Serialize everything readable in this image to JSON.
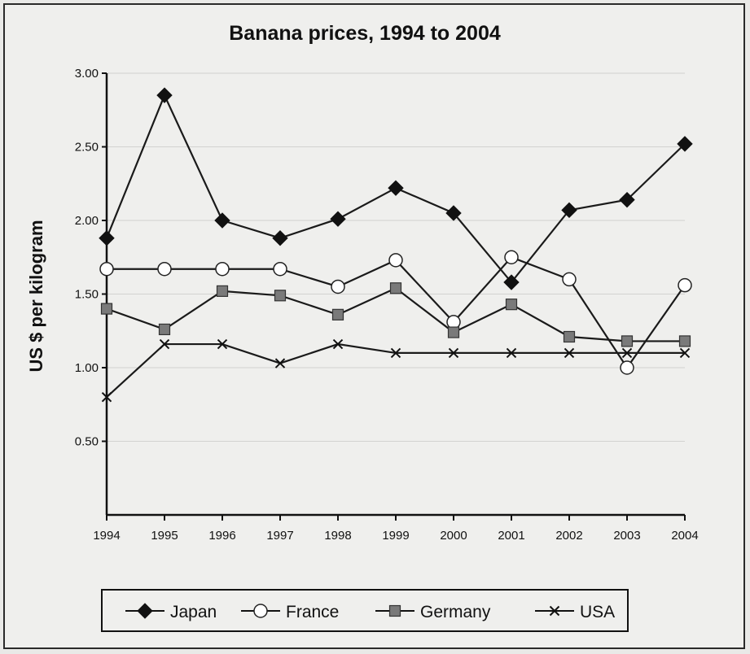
{
  "chart_data": {
    "type": "line",
    "title": "Banana prices, 1994 to 2004",
    "xlabel": "",
    "ylabel": "US $ per kilogram",
    "x": [
      "1994",
      "1995",
      "1996",
      "1997",
      "1998",
      "1999",
      "2000",
      "2001",
      "2002",
      "2003",
      "2004"
    ],
    "ylim": [
      0,
      3
    ],
    "yticks": [
      "0.50",
      "1.00",
      "1.50",
      "2.00",
      "2.50",
      "3.00"
    ],
    "grid": true,
    "legend_position": "bottom",
    "series": [
      {
        "name": "Japan",
        "marker": "diamond",
        "color": "#111111",
        "values": [
          1.88,
          2.85,
          2.0,
          1.88,
          2.01,
          2.22,
          2.05,
          1.58,
          2.07,
          2.14,
          2.52
        ]
      },
      {
        "name": "France",
        "marker": "circle",
        "color": "#ffffff",
        "values": [
          1.67,
          1.67,
          1.67,
          1.67,
          1.55,
          1.73,
          1.31,
          1.75,
          1.6,
          1.0,
          1.56
        ]
      },
      {
        "name": "Germany",
        "marker": "square",
        "color": "#7a7a7a",
        "values": [
          1.4,
          1.26,
          1.52,
          1.49,
          1.36,
          1.54,
          1.24,
          1.43,
          1.21,
          1.18,
          1.18
        ]
      },
      {
        "name": "USA",
        "marker": "x",
        "color": "#111111",
        "values": [
          0.8,
          1.16,
          1.16,
          1.03,
          1.16,
          1.1,
          1.1,
          1.1,
          1.1,
          1.1,
          1.1
        ]
      }
    ]
  }
}
